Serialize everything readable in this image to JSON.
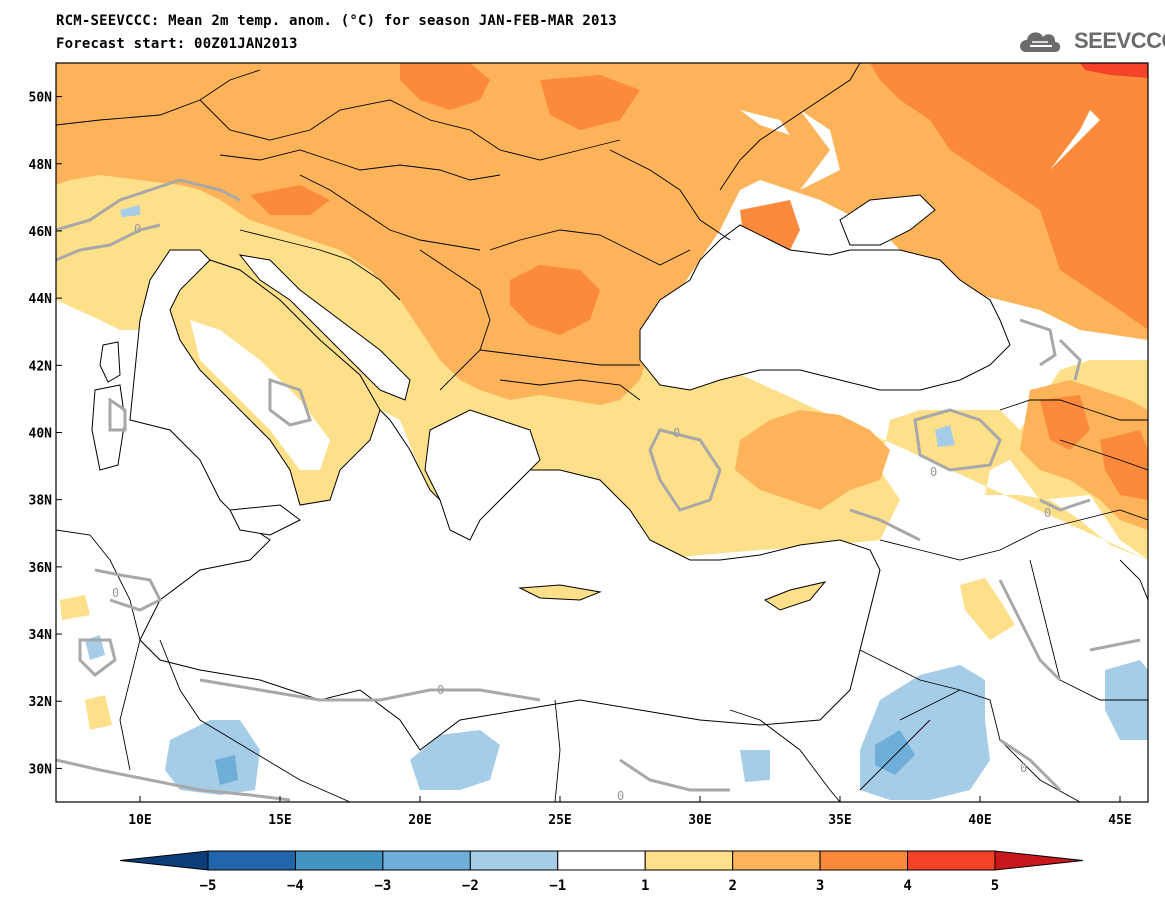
{
  "header": {
    "title_line1": "RCM-SEEVCCC: Mean 2m temp. anom. (°C) for season JAN-FEB-MAR 2013",
    "title_line2": "Forecast start: 00Z01JAN2013",
    "logo_text": "SEEVCCC",
    "logo_icon": "cloud-icon"
  },
  "map": {
    "lon_range": [
      7,
      46
    ],
    "lat_range": [
      29,
      51
    ],
    "lon_ticks": [
      "10E",
      "15E",
      "20E",
      "25E",
      "30E",
      "35E",
      "40E",
      "45E"
    ],
    "lat_ticks": [
      "50N",
      "48N",
      "46N",
      "44N",
      "42N",
      "40N",
      "38N",
      "36N",
      "34N",
      "32N",
      "30N"
    ],
    "contour_label": "0"
  },
  "colorbar": {
    "labels": [
      "-5",
      "-4",
      "-3",
      "-2",
      "-1",
      "1",
      "2",
      "3",
      "4",
      "5"
    ],
    "colors": [
      "#0b3d78",
      "#2166ac",
      "#4393c3",
      "#6faed8",
      "#a6cde8",
      "#ffffff",
      "#fde089",
      "#fdb35a",
      "#fb8a3c",
      "#f5432a",
      "#c8181c"
    ]
  }
}
